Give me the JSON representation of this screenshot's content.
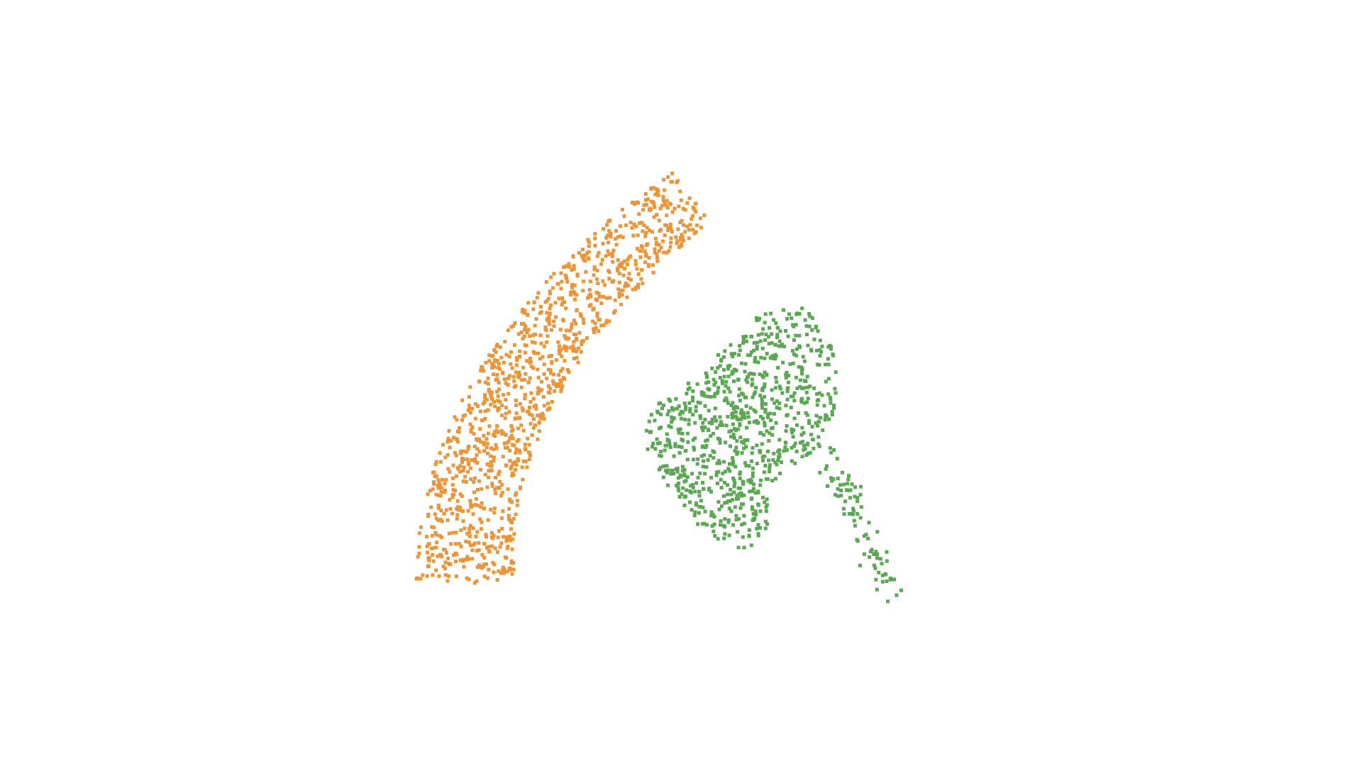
{
  "scene": {
    "background": "#ffffff",
    "point_shape": "square",
    "clusters": [
      {
        "id": "orange-curved-strip",
        "color": "#ee9435",
        "point_count": 1150,
        "shape": "curved-band"
      },
      {
        "id": "green-blob",
        "color": "#5aa851",
        "point_count": 930,
        "shape": "irregular-blob-with-tail"
      }
    ]
  }
}
